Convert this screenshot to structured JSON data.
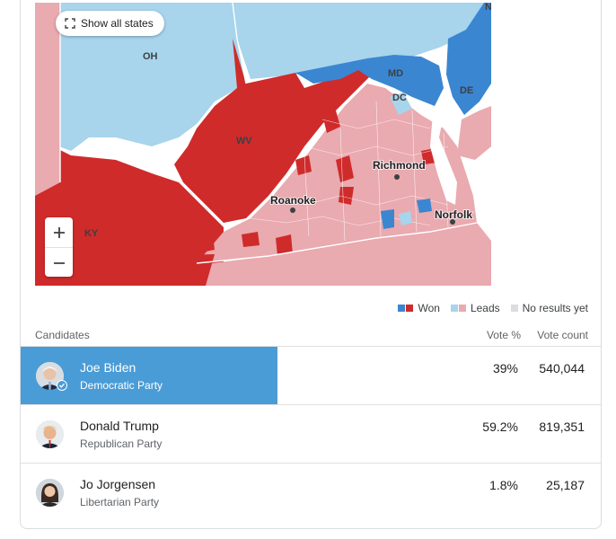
{
  "map": {
    "show_all_states_label": "Show all states",
    "state_labels": [
      "OH",
      "WV",
      "KY",
      "MD",
      "DC",
      "DE",
      "NJ"
    ],
    "city_labels": [
      "Richmond",
      "Roanoke",
      "Norfolk"
    ],
    "zoom_in_label": "+",
    "zoom_out_label": "−"
  },
  "legend": {
    "won_label": "Won",
    "leads_label": "Leads",
    "no_results_label": "No results yet"
  },
  "colors": {
    "dem_won": "#3b86d1",
    "rep_won": "#cf2b2b",
    "dem_leads": "#a8d4ec",
    "rep_leads": "#e9aab0",
    "no_results": "#dadce0",
    "leader_bar": "#4a9cd6"
  },
  "table": {
    "candidates_header": "Candidates",
    "pct_header": "Vote %",
    "count_header": "Vote count",
    "rows": [
      {
        "name": "Joe Biden",
        "party": "Democratic Party",
        "pct": "39%",
        "votes": "540,044",
        "winner": true
      },
      {
        "name": "Donald Trump",
        "party": "Republican Party",
        "pct": "59.2%",
        "votes": "819,351",
        "winner": false
      },
      {
        "name": "Jo Jorgensen",
        "party": "Libertarian Party",
        "pct": "1.8%",
        "votes": "25,187",
        "winner": false
      }
    ]
  }
}
